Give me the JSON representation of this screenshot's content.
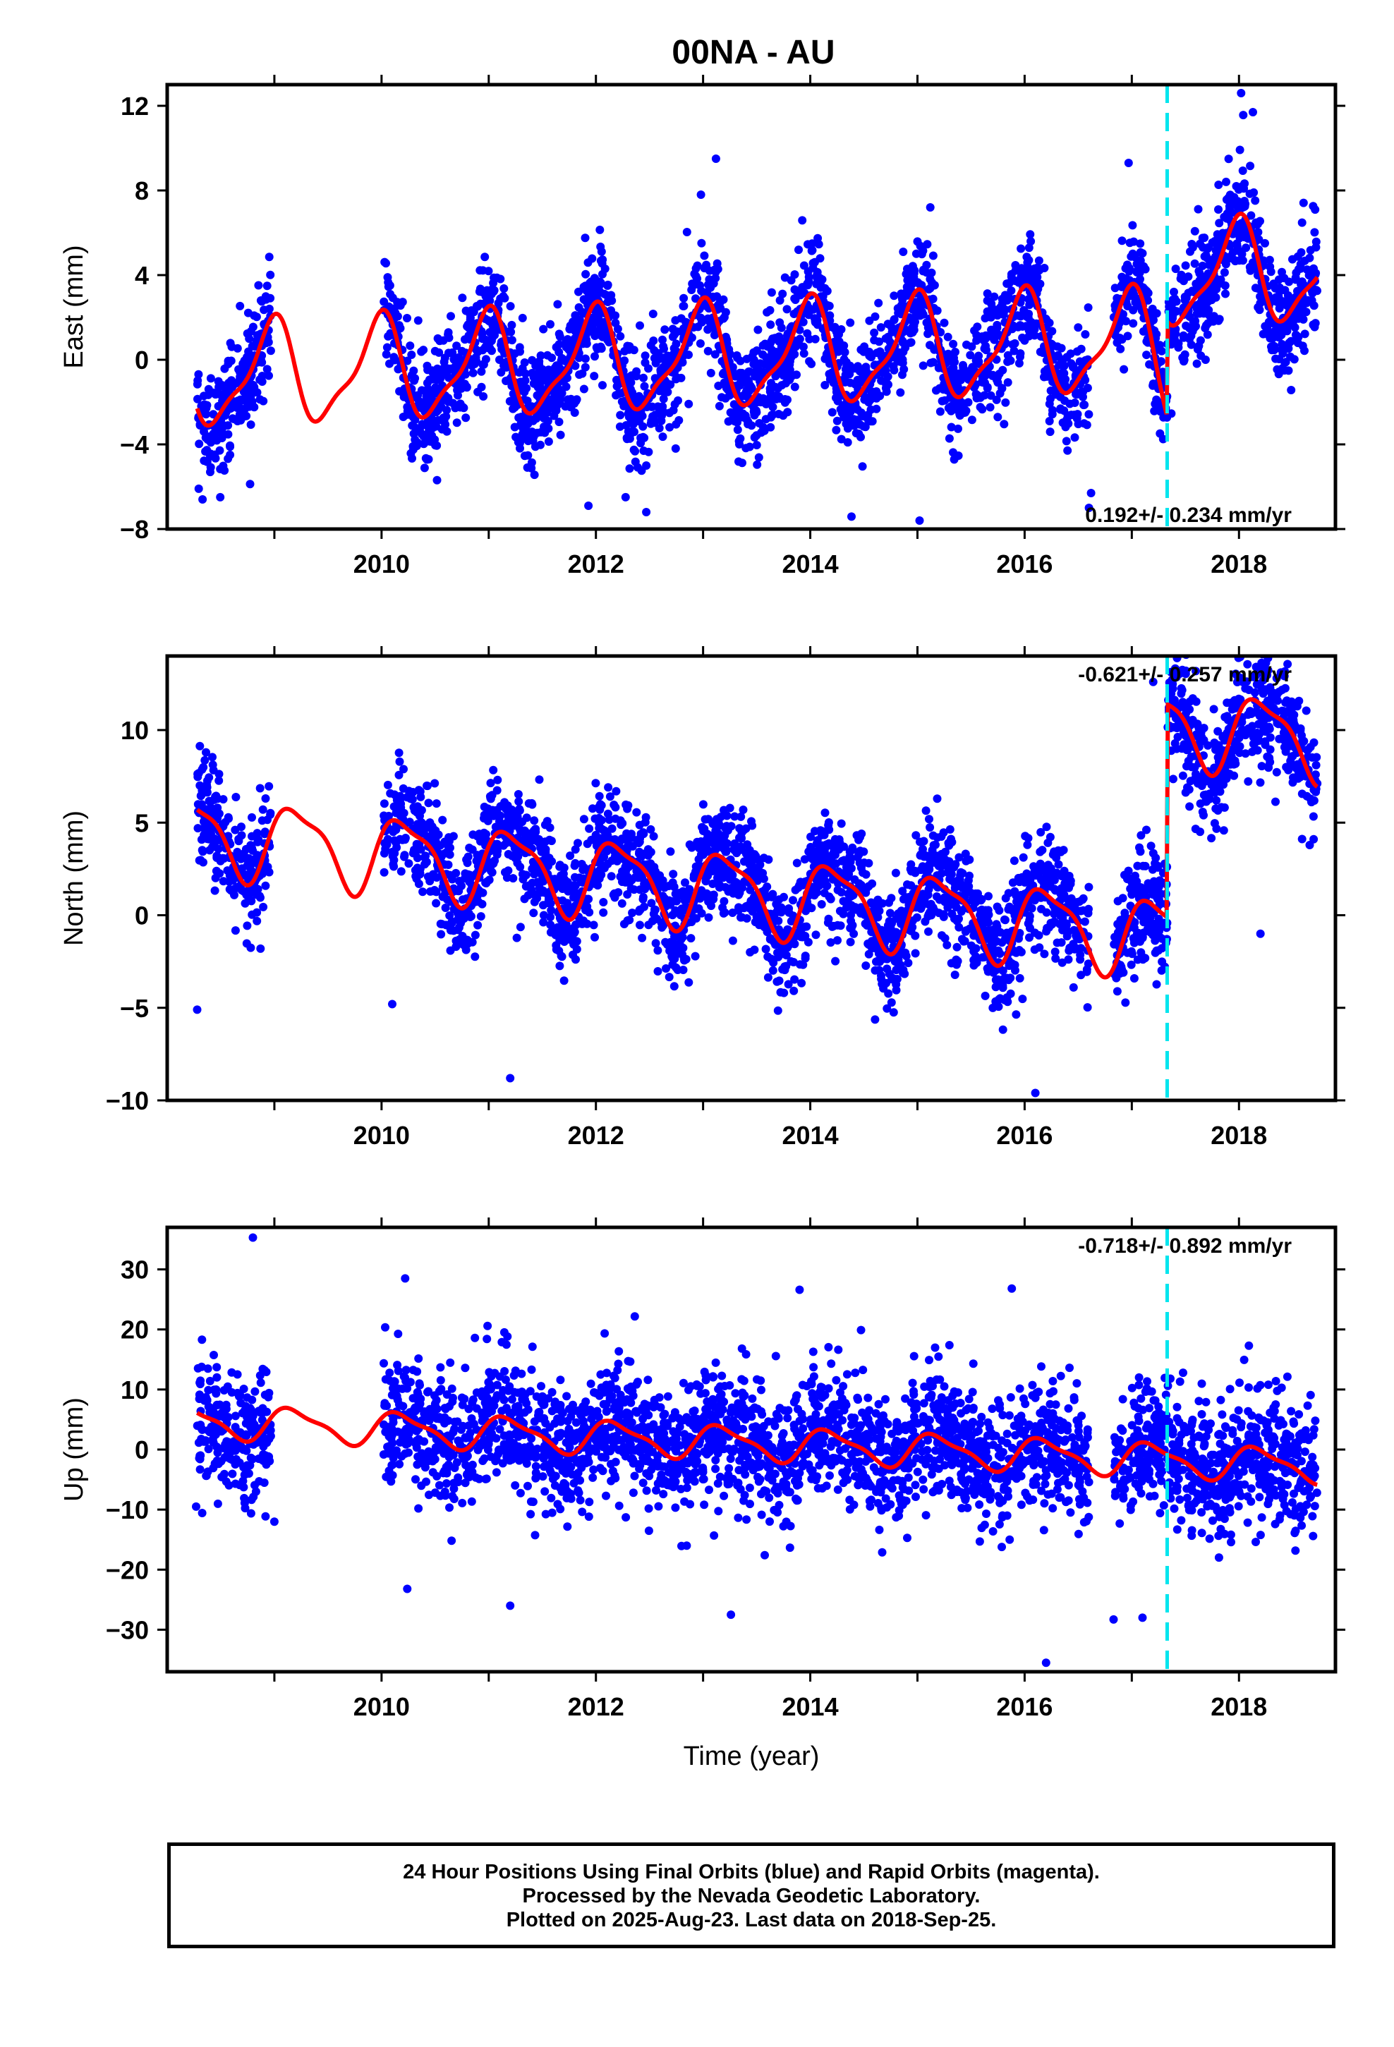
{
  "title": "00NA - AU",
  "chart_data": [
    {
      "type": "scatter",
      "panel": "east",
      "ylabel": "East (mm)",
      "xlabel": "",
      "xlim": [
        2008.0,
        2018.9
      ],
      "ylim": [
        -8,
        13
      ],
      "yticks": [
        -8,
        -4,
        0,
        4,
        8,
        12
      ],
      "xticks": [
        2010,
        2012,
        2014,
        2016,
        2018
      ],
      "rate_label": "0.192+/- 0.234 mm/yr",
      "offset_epoch": 2017.33,
      "model": {
        "base": 0.2,
        "trend": 0.192,
        "t0": 2013.5,
        "annual_amp": 2.3,
        "annual_phase": 1.75,
        "semiannual_amp": 0.7,
        "semiannual_phase": 0.9,
        "jump": 3.0,
        "jump_epoch": 2017.33,
        "jump_sign_before": -1.5
      },
      "data_intervals": [
        [
          2008.28,
          2008.97
        ],
        [
          2010.02,
          2016.6
        ],
        [
          2016.83,
          2018.73
        ]
      ],
      "scatter_sd": 1.3,
      "outliers": [
        [
          2018.02,
          12.6
        ],
        [
          2013.12,
          9.5
        ],
        [
          2012.98,
          7.8
        ],
        [
          2015.12,
          7.2
        ],
        [
          2016.62,
          -6.3
        ],
        [
          2016.6,
          -7.0
        ],
        [
          2011.93,
          -6.9
        ],
        [
          2012.47,
          -7.2
        ],
        [
          2015.02,
          -7.6
        ],
        [
          2008.33,
          -6.6
        ],
        [
          2018.13,
          11.7
        ],
        [
          2016.97,
          9.3
        ]
      ]
    },
    {
      "type": "scatter",
      "panel": "north",
      "ylabel": "North (mm)",
      "xlabel": "",
      "xlim": [
        2008.0,
        2018.9
      ],
      "ylim": [
        -10,
        14
      ],
      "yticks": [
        -10,
        -5,
        0,
        5,
        10
      ],
      "xticks": [
        2010,
        2012,
        2014,
        2016,
        2018
      ],
      "rate_label": "-0.621+/- 0.257 mm/yr",
      "offset_epoch": 2017.33,
      "model": {
        "base": 1.2,
        "trend": -0.621,
        "t0": 2013.5,
        "annual_amp": 2.0,
        "annual_phase": 0.2,
        "semiannual_amp": 0.6,
        "semiannual_phase": 1.3,
        "jump": 11.5,
        "jump_epoch": 2017.33,
        "jump_sign_before": 0
      },
      "data_intervals": [
        [
          2008.28,
          2008.97
        ],
        [
          2010.02,
          2016.6
        ],
        [
          2016.83,
          2018.73
        ]
      ],
      "scatter_sd": 1.5,
      "outliers": [
        [
          2017.47,
          13.2
        ],
        [
          2008.28,
          -5.1
        ],
        [
          2011.2,
          -8.8
        ],
        [
          2016.1,
          -9.6
        ],
        [
          2018.2,
          -1.0
        ],
        [
          2010.1,
          -4.8
        ],
        [
          2017.2,
          12.6
        ]
      ]
    },
    {
      "type": "scatter",
      "panel": "up",
      "ylabel": "Up (mm)",
      "xlabel": "Time (year)",
      "xlim": [
        2008.0,
        2018.9
      ],
      "ylim": [
        -37,
        37
      ],
      "yticks": [
        -30,
        -20,
        -10,
        0,
        10,
        20,
        30
      ],
      "xticks": [
        2010,
        2012,
        2014,
        2016,
        2018
      ],
      "rate_label": "-0.718+/- 0.892 mm/yr",
      "offset_epoch": 2017.33,
      "model": {
        "base": 1.0,
        "trend": -0.718,
        "t0": 2013.5,
        "annual_amp": 2.6,
        "annual_phase": 0.4,
        "semiannual_amp": 0.8,
        "semiannual_phase": 1.1,
        "jump": 0,
        "jump_epoch": 2017.33,
        "jump_sign_before": 0
      },
      "data_intervals": [
        [
          2008.28,
          2008.97
        ],
        [
          2010.02,
          2016.6
        ],
        [
          2016.83,
          2018.73
        ]
      ],
      "scatter_sd": 5.2,
      "outliers": [
        [
          2008.8,
          35.3
        ],
        [
          2010.22,
          28.5
        ],
        [
          2015.88,
          26.8
        ],
        [
          2013.9,
          26.6
        ],
        [
          2016.2,
          -35.5
        ],
        [
          2010.24,
          -23.2
        ],
        [
          2011.2,
          -26.0
        ],
        [
          2013.26,
          -27.5
        ],
        [
          2016.83,
          -28.3
        ],
        [
          2017.1,
          -28.0
        ],
        [
          2009.0,
          -12.0
        ],
        [
          2008.27,
          -9.5
        ]
      ]
    }
  ],
  "footer": {
    "line1": "24 Hour Positions Using Final Orbits (blue) and Rapid Orbits (magenta).",
    "line2": "Processed by the Nevada Geodetic Laboratory.",
    "line3": "Plotted on 2025-Aug-23. Last data on 2018-Sep-25."
  },
  "colors": {
    "final_orbit_points": "#0000ff",
    "model_curve": "#ff0000",
    "offset_line": "#00e5ee",
    "frame": "#000000"
  }
}
